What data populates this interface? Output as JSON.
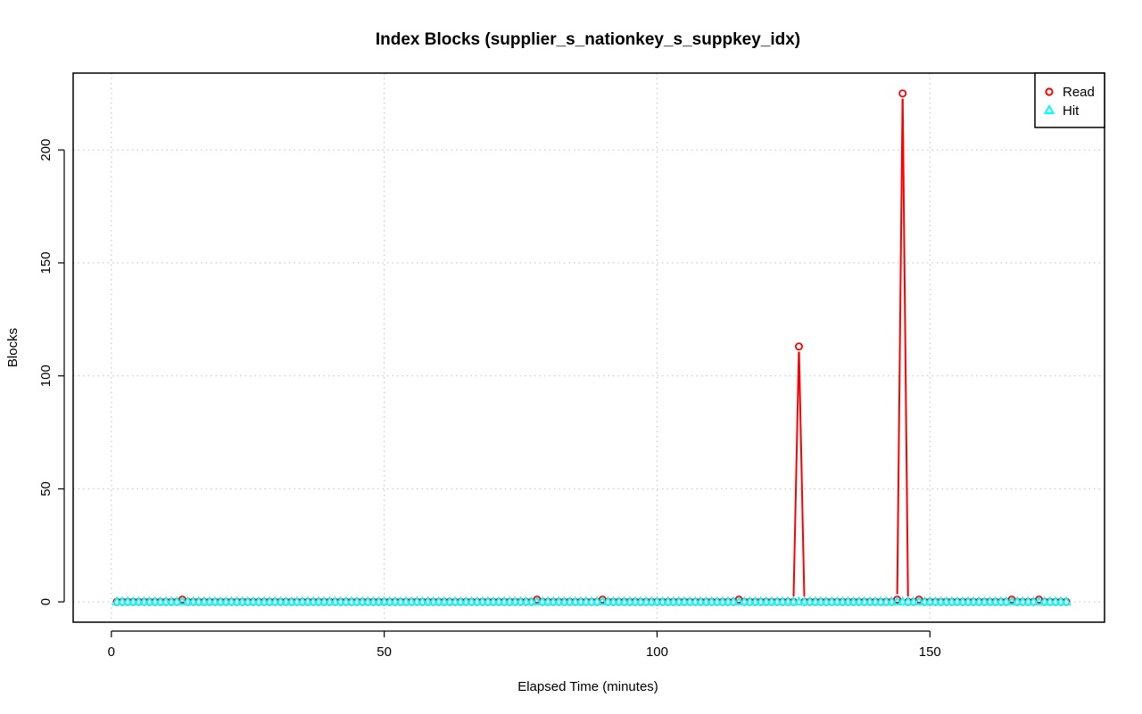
{
  "chart_data": {
    "type": "line",
    "title": "Index Blocks (supplier_s_nationkey_s_suppkey_idx)",
    "xlabel": "Elapsed Time (minutes)",
    "ylabel": "Blocks",
    "xlim": [
      -7,
      182
    ],
    "ylim": [
      -9,
      234
    ],
    "x_ticks": [
      0,
      50,
      100,
      150
    ],
    "y_ticks": [
      0,
      50,
      100,
      150,
      200
    ],
    "grid": true,
    "legend_position": "top-right",
    "x_start": 1,
    "x_end": 175,
    "series": [
      {
        "name": "Read",
        "color": "#ff0000",
        "marker": "circle",
        "default_value": 0,
        "points": [
          {
            "x": 13,
            "y": 1
          },
          {
            "x": 78,
            "y": 1
          },
          {
            "x": 90,
            "y": 1
          },
          {
            "x": 115,
            "y": 1
          },
          {
            "x": 126,
            "y": 113
          },
          {
            "x": 144,
            "y": 1
          },
          {
            "x": 145,
            "y": 225
          },
          {
            "x": 148,
            "y": 1
          },
          {
            "x": 165,
            "y": 1
          },
          {
            "x": 170,
            "y": 1
          }
        ]
      },
      {
        "name": "Hit",
        "color": "#00ffff",
        "marker": "triangle",
        "default_value": 0,
        "points": []
      }
    ]
  }
}
